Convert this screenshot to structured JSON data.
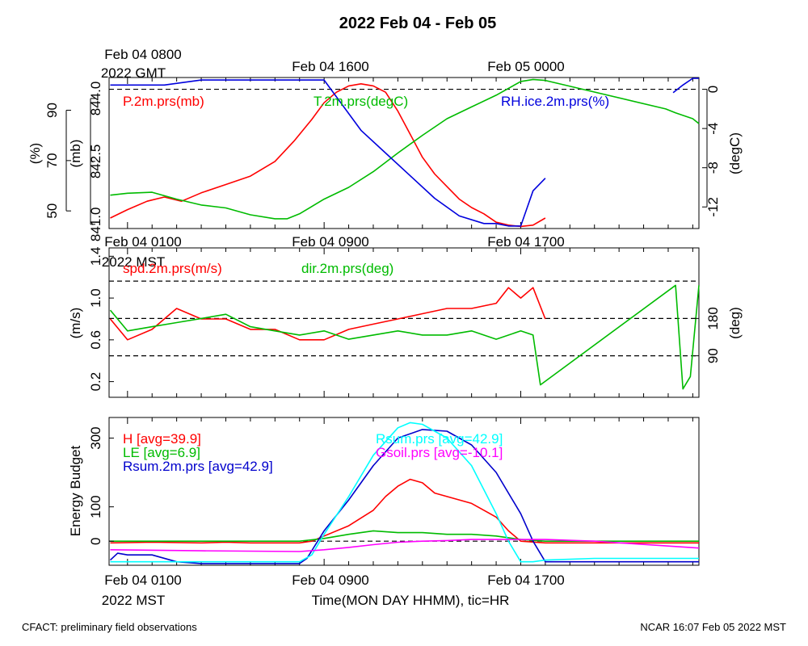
{
  "title": "2022 Feb 04 - Feb 05",
  "footer_left": "CFACT: preliminary field observations",
  "footer_right": "NCAR 16:07 Feb 05 2022 MST",
  "top_axis": {
    "tick_labels": [
      "Feb 04 0800",
      "Feb 04 1600",
      "Feb 05 0000"
    ],
    "first_sublabel": "2022 GMT"
  },
  "mid_axis": {
    "tick_labels": [
      "Feb 04 0100",
      "Feb 04 0900",
      "Feb 04 1700"
    ],
    "first_sublabel": "2022 MST"
  },
  "bottom_axis": {
    "tick_labels": [
      "Feb 04 0100",
      "Feb 04 0900",
      "Feb 04 1700"
    ],
    "first_sublabel": "2022 MST",
    "xlabel": "Time(MON DAY HHMM), tic=HR"
  },
  "chart_data": [
    {
      "type": "line",
      "panel": "top",
      "x_unit": "hours since Feb 04 0000 MST",
      "xlim": [
        0.25,
        24.25
      ],
      "y_axes": [
        {
          "label": "(%)",
          "ticks": [
            50,
            70,
            90
          ],
          "lim": [
            43,
            103
          ]
        },
        {
          "label": "(mb)",
          "ticks": [
            "841.0",
            "842.5",
            "844.0"
          ],
          "lim": [
            840.9,
            844.5
          ]
        },
        {
          "label": "(degC)",
          "ticks": [
            0,
            -4,
            -8,
            -12
          ],
          "lim": [
            -14.2,
            1.2
          ],
          "side": "right"
        }
      ],
      "reference_lines": [
        {
          "axis": "degC",
          "value": 0,
          "style": "dashed"
        }
      ],
      "series": [
        {
          "name": "P.2m.prs(mb)",
          "color": "#ff0000",
          "axis": "mb",
          "x": [
            0.3,
            1.0,
            1.8,
            2.5,
            3.2,
            4.0,
            5.0,
            6.0,
            7.0,
            7.8,
            8.5,
            9.0,
            9.5,
            10.0,
            10.5,
            11.0,
            11.5,
            12.0,
            12.5,
            13.0,
            13.5,
            14.0,
            14.5,
            15.0,
            15.5,
            16.0,
            16.5,
            17.0,
            17.5,
            18.0
          ],
          "y": [
            841.15,
            841.35,
            841.55,
            841.65,
            841.55,
            841.75,
            841.95,
            842.15,
            842.5,
            843.0,
            843.5,
            843.9,
            844.15,
            844.3,
            844.35,
            844.3,
            844.15,
            843.7,
            843.15,
            842.6,
            842.2,
            841.9,
            841.6,
            841.4,
            841.25,
            841.05,
            840.98,
            840.95,
            840.98,
            841.15
          ]
        },
        {
          "name": "T.2m.prs(degC)",
          "color": "#00bb00",
          "axis": "degC",
          "x": [
            0.3,
            1.0,
            2.0,
            3.0,
            4.0,
            5.0,
            6.0,
            7.0,
            7.5,
            8.0,
            9.0,
            10.0,
            11.0,
            12.0,
            13.0,
            14.0,
            15.0,
            16.0,
            17.0,
            17.5,
            18.0,
            22.9,
            23.3,
            24.0,
            24.25
          ],
          "y": [
            -10.8,
            -10.6,
            -10.5,
            -11.2,
            -11.8,
            -12.1,
            -12.8,
            -13.2,
            -13.2,
            -12.7,
            -11.2,
            -10.0,
            -8.4,
            -6.5,
            -4.7,
            -3.0,
            -1.8,
            -0.6,
            0.8,
            1.0,
            0.9,
            -2.0,
            -2.4,
            -3.0,
            -3.5
          ]
        },
        {
          "name": "RH.ice.2m.prs(%)",
          "color": "#0000dd",
          "axis": "%",
          "x": [
            0.3,
            2.5,
            4.0,
            5.0,
            6.0,
            7.0,
            8.0,
            9.0,
            10.5,
            11.5,
            12.5,
            13.5,
            14.5,
            15.5,
            16.0,
            16.5,
            17.0,
            17.5,
            18.0
          ],
          "y": [
            100,
            100,
            102,
            102,
            102,
            102,
            102,
            102,
            82,
            73,
            64,
            55,
            48,
            45,
            45,
            44,
            44,
            58,
            63
          ]
        },
        {
          "name": "RH.ice.2m.prs(%)",
          "color": "#0000dd",
          "axis": "%",
          "x": [
            23.2,
            23.6,
            24.0,
            24.25
          ],
          "y": [
            97,
            100,
            103,
            103
          ]
        }
      ],
      "labels": [
        "P.2m.prs(mb)",
        "T.2m.prs(degC)",
        "RH.ice.2m.prs(%)"
      ]
    },
    {
      "type": "line",
      "panel": "middle",
      "x_unit": "hours since Feb 04 0000 MST",
      "xlim": [
        0.25,
        24.25
      ],
      "y_axes": [
        {
          "label": "(m/s)",
          "ticks": [
            "0.2",
            "0.6",
            "1.0",
            "1.4"
          ],
          "lim": [
            0.05,
            1.48
          ]
        },
        {
          "label": "(deg)",
          "ticks": [
            90,
            180
          ],
          "lim": [
            -10,
            350
          ],
          "side": "right"
        }
      ],
      "reference_lines": [
        {
          "axis": "deg",
          "value": 90,
          "style": "dashed"
        },
        {
          "axis": "deg",
          "value": 180,
          "style": "dashed"
        },
        {
          "axis": "deg",
          "value": 270,
          "style": "dashed"
        }
      ],
      "series": [
        {
          "name": "spd.2m.prs(m/s)",
          "color": "#ff0000",
          "axis": "m/s",
          "x": [
            0.3,
            1.0,
            2.0,
            3.0,
            4.0,
            5.0,
            6.0,
            7.0,
            8.0,
            9.0,
            10.0,
            11.0,
            12.0,
            13.0,
            14.0,
            15.0,
            16.0,
            16.5,
            17.0,
            17.5,
            18.0
          ],
          "y": [
            0.8,
            0.6,
            0.7,
            0.9,
            0.8,
            0.8,
            0.7,
            0.7,
            0.6,
            0.6,
            0.7,
            0.75,
            0.8,
            0.85,
            0.9,
            0.9,
            0.95,
            1.1,
            1.0,
            1.1,
            0.8
          ]
        },
        {
          "name": "dir.2m.prs(deg)",
          "color": "#00bb00",
          "axis": "deg",
          "x": [
            0.3,
            1.0,
            2.0,
            3.0,
            4.0,
            5.0,
            6.0,
            7.0,
            8.0,
            9.0,
            10.0,
            11.0,
            12.0,
            13.0,
            14.0,
            15.0,
            16.0,
            17.0,
            17.5,
            17.8,
            23.3,
            23.6,
            23.9,
            24.25
          ],
          "y": [
            200,
            150,
            160,
            170,
            180,
            190,
            160,
            150,
            140,
            150,
            130,
            140,
            150,
            140,
            140,
            150,
            130,
            150,
            140,
            20,
            260,
            10,
            40,
            260
          ]
        }
      ],
      "labels": [
        "spd.2m.prs(m/s)",
        "dir.2m.prs(deg)"
      ]
    },
    {
      "type": "line",
      "panel": "bottom",
      "x_unit": "hours since Feb 04 0000 MST",
      "xlim": [
        0.25,
        24.25
      ],
      "ylabel": "Energy Budget",
      "y_ticks": [
        0,
        100,
        300
      ],
      "ylim": [
        -70,
        360
      ],
      "reference_lines": [
        {
          "value": 0,
          "style": "dashed"
        }
      ],
      "series": [
        {
          "name": "H [avg=39.9]",
          "color": "#ff0000",
          "x": [
            0.3,
            2.0,
            4.0,
            5.0,
            6.0,
            7.0,
            8.0,
            8.5,
            9.0,
            10.0,
            11.0,
            11.5,
            12.0,
            12.5,
            13.0,
            13.5,
            14.0,
            15.0,
            16.0,
            16.5,
            17.0,
            18.0,
            20.0,
            22.0,
            24.25
          ],
          "y": [
            -5,
            -3,
            -5,
            -3,
            -5,
            -5,
            -5,
            0,
            15,
            45,
            90,
            130,
            160,
            180,
            170,
            140,
            130,
            110,
            70,
            30,
            0,
            -5,
            -5,
            -5,
            -5
          ]
        },
        {
          "name": "LE [avg=6.9]",
          "color": "#00bb00",
          "x": [
            0.3,
            4.0,
            8.0,
            9.0,
            10.0,
            11.0,
            12.0,
            13.0,
            14.0,
            15.0,
            16.0,
            17.0,
            18.0,
            20.0,
            24.25
          ],
          "y": [
            0,
            0,
            0,
            8,
            20,
            30,
            25,
            25,
            20,
            20,
            15,
            5,
            0,
            0,
            0
          ]
        },
        {
          "name": "Rsum.2m.prs [avg=42.9]",
          "color": "#0000cc",
          "x": [
            0.3,
            0.6,
            1.0,
            2.0,
            3.0,
            4.0,
            6.0,
            8.0,
            8.3,
            9.0,
            10.0,
            11.0,
            12.0,
            13.0,
            14.0,
            15.0,
            16.0,
            17.0,
            17.5,
            18.0,
            20.0,
            24.25
          ],
          "y": [
            -55,
            -35,
            -40,
            -40,
            -60,
            -65,
            -65,
            -65,
            -50,
            30,
            120,
            220,
            300,
            325,
            320,
            280,
            200,
            80,
            0,
            -60,
            -60,
            -60
          ]
        },
        {
          "name": "Rsum.prs [avg=42.9]",
          "color": "#00ffff",
          "x": [
            0.3,
            2.0,
            4.0,
            6.0,
            8.0,
            8.5,
            9.0,
            10.0,
            11.0,
            12.0,
            12.5,
            13.0,
            14.0,
            15.0,
            16.0,
            16.5,
            17.0,
            17.5,
            18.0,
            20.0,
            24.25
          ],
          "y": [
            -60,
            -60,
            -60,
            -60,
            -60,
            -40,
            20,
            130,
            250,
            330,
            345,
            340,
            300,
            220,
            80,
            0,
            -60,
            -60,
            -55,
            -50,
            -50
          ]
        },
        {
          "name": "Gsoil.prs [avg=-10.1]",
          "color": "#ff00ff",
          "x": [
            0.3,
            4.0,
            8.0,
            9.0,
            10.0,
            11.0,
            12.0,
            13.0,
            14.0,
            15.0,
            16.0,
            18.0,
            20.0,
            24.25
          ],
          "y": [
            -25,
            -28,
            -30,
            -25,
            -18,
            -10,
            -3,
            0,
            2,
            5,
            5,
            5,
            0,
            -20
          ]
        }
      ],
      "labels": [
        "H [avg=39.9]",
        "LE [avg=6.9]",
        "Rsum.2m.prs [avg=42.9]",
        "Rsum.prs [avg=42.9]",
        "Gsoil.prs [avg=-10.1]"
      ]
    }
  ]
}
